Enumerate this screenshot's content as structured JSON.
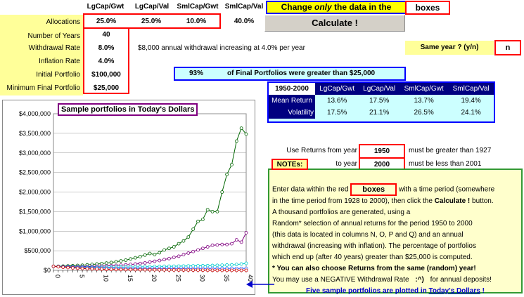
{
  "headers": [
    "LgCap/Gwt",
    "LgCap/Val",
    "SmlCap/Gwt",
    "SmlCap/Val"
  ],
  "banner": {
    "text_before": "Change",
    "emph": "only",
    "text_after": "the data in the",
    "boxes": "boxes"
  },
  "calculate_label": "Calculate !",
  "inputs": {
    "allocations": {
      "label": "Allocations",
      "values": [
        "25.0%",
        "25.0%",
        "10.0%",
        "40.0%"
      ]
    },
    "years": {
      "label": "Number of Years",
      "value": "40"
    },
    "withdrawal": {
      "label": "Withdrawal Rate",
      "value": "8.0%",
      "note": "$8,000 annual withdrawal increasing at 4.0% per year"
    },
    "inflation": {
      "label": "Inflation Rate",
      "value": "4.0%"
    },
    "initial": {
      "label": "Initial Portfolio",
      "value": "$100,000"
    },
    "minimum": {
      "label": "Minimum Final Portfolio",
      "value": "$25,000"
    }
  },
  "same_year": {
    "label": "Same year ? (y/n)",
    "value": "n"
  },
  "result": {
    "pct": "93%",
    "text": "of Final Portfolios were greater than $25,000"
  },
  "stats": {
    "period": "1950-2000",
    "columns": [
      "LgCap/Gwt",
      "LgCap/Val",
      "SmlCap/Gwt",
      "SmlCap/Val"
    ],
    "rows": [
      {
        "label": "Mean Return",
        "values": [
          "13.6%",
          "17.5%",
          "13.7%",
          "19.4%"
        ]
      },
      {
        "label": "Volatility",
        "values": [
          "17.5%",
          "21.1%",
          "26.5%",
          "24.1%"
        ]
      }
    ]
  },
  "returns": {
    "from_label": "Use Returns from year",
    "from_value": "1950",
    "from_note": "must be greater than 1927",
    "to_label": "to year",
    "to_value": "2000",
    "to_note": "must be less than 2001"
  },
  "notes": {
    "title": "NOTEs:",
    "line1_before": "Enter data within the red",
    "line1_box": "boxes",
    "line1_after": "with a time period (somewhere",
    "line2_before": "in the time period from 1928 to 2000), then click the",
    "line2_bold": "Calculate !",
    "line2_after": "button.",
    "line3": "A thousand portfolios are generated, using a",
    "line4": "Random* selection of annual returns for the period 1950 to 2000",
    "line5": "(this data is located in columns N, O, P and Q) and an annual",
    "line6": "withdrawal (increasing with inflation). The percentage of portfolios",
    "line7": "which end up (after 40 years) greater than $25,000 is computed.",
    "line8": "*   You can also choose Returns from the same (random) year!",
    "line9_before": "You may use a NEGATIVE Withdrawal Rate",
    "line9_smiley": ":^)",
    "line9_after": "for annual deposits!",
    "line10_before": "Five sample portfolios are plotted in",
    "line10_link": "Today's Dollars",
    "line10_after": "!"
  },
  "chart_data": {
    "type": "line",
    "title": "Sample portfolios in Today's Dollars",
    "xlabel": "",
    "ylabel": "",
    "xlim": [
      0,
      40
    ],
    "ylim": [
      0,
      4000000
    ],
    "xticks": [
      0,
      1,
      2,
      3,
      4,
      5,
      6,
      7,
      8,
      9,
      10,
      11,
      12,
      13,
      14,
      15,
      16,
      17,
      18,
      19,
      20,
      21,
      22,
      23,
      24,
      25,
      26,
      27,
      28,
      29,
      30,
      31,
      32,
      33,
      34,
      35,
      36,
      37,
      38,
      39,
      40
    ],
    "xtick_labels": [
      "0",
      "",
      "",
      "",
      "",
      "5",
      "",
      "",
      "",
      "",
      "10",
      "",
      "",
      "",
      "",
      "15",
      "",
      "",
      "",
      "",
      "20",
      "",
      "",
      "",
      "",
      "25",
      "",
      "",
      "",
      "",
      "30",
      "",
      "",
      "",
      "",
      "35",
      "",
      "",
      "",
      "",
      "40"
    ],
    "yticks": [
      0,
      500000,
      1000000,
      1500000,
      2000000,
      2500000,
      3000000,
      3500000,
      4000000
    ],
    "ytick_labels": [
      "$0",
      "$500,000",
      "$1,000,000",
      "$1,500,000",
      "$2,000,000",
      "$2,500,000",
      "$3,000,000",
      "$3,500,000",
      "$4,000,000"
    ],
    "grid": "horizontal",
    "series": [
      {
        "color": "#006600",
        "values": [
          100000,
          103000,
          108000,
          112000,
          118000,
          125000,
          130000,
          140000,
          150000,
          160000,
          172000,
          185000,
          200000,
          220000,
          240000,
          260000,
          290000,
          320000,
          350000,
          390000,
          430000,
          400000,
          450000,
          520000,
          560000,
          600000,
          680000,
          750000,
          850000,
          1050000,
          1250000,
          1300000,
          1550000,
          1500000,
          1500000,
          2000000,
          2450000,
          2700000,
          3300000,
          3630000,
          3480000
        ]
      },
      {
        "color": "#800080",
        "values": [
          100000,
          98000,
          97000,
          96000,
          95000,
          95000,
          96000,
          98000,
          100000,
          104000,
          108000,
          112000,
          118000,
          125000,
          132000,
          140000,
          150000,
          160000,
          175000,
          190000,
          210000,
          230000,
          250000,
          275000,
          300000,
          330000,
          360000,
          400000,
          440000,
          480000,
          520000,
          560000,
          600000,
          640000,
          650000,
          660000,
          660000,
          680000,
          780000,
          720000,
          960000
        ]
      },
      {
        "color": "#00cccc",
        "values": [
          100000,
          96000,
          92000,
          88000,
          85000,
          82000,
          80000,
          79000,
          78000,
          78000,
          78000,
          79000,
          80000,
          82000,
          84000,
          86000,
          88000,
          90000,
          92000,
          94000,
          96000,
          98000,
          100000,
          102000,
          104000,
          106000,
          108000,
          110000,
          112000,
          114000,
          116000,
          118000,
          120000,
          124000,
          128000,
          132000,
          136000,
          140000,
          150000,
          160000,
          180000
        ]
      },
      {
        "color": "#3366ff",
        "values": [
          100000,
          94000,
          88000,
          82000,
          76000,
          72000,
          68000,
          64000,
          62000,
          60000,
          58000,
          56000,
          55000,
          54000,
          53000,
          52000,
          51000,
          50000,
          50000,
          50000,
          50000,
          50000,
          50000,
          50000,
          50000,
          50000,
          50000,
          50000,
          50000,
          50000,
          50000,
          50000,
          50000,
          50000,
          50000,
          50000,
          50000,
          50000,
          50000,
          50000,
          50000
        ]
      },
      {
        "color": "#cc0000",
        "values": [
          100000,
          90000,
          80000,
          70000,
          62000,
          55000,
          48000,
          42000,
          37000,
          33000,
          30000,
          27000,
          25000,
          23000,
          21000,
          20000,
          19000,
          18000,
          17000,
          16000,
          15000,
          14000,
          13000,
          12000,
          11000,
          10000,
          9000,
          8000,
          7000,
          6000,
          5000,
          4000,
          3000,
          2000,
          1000,
          500,
          0,
          0,
          0,
          0,
          0
        ]
      }
    ]
  }
}
